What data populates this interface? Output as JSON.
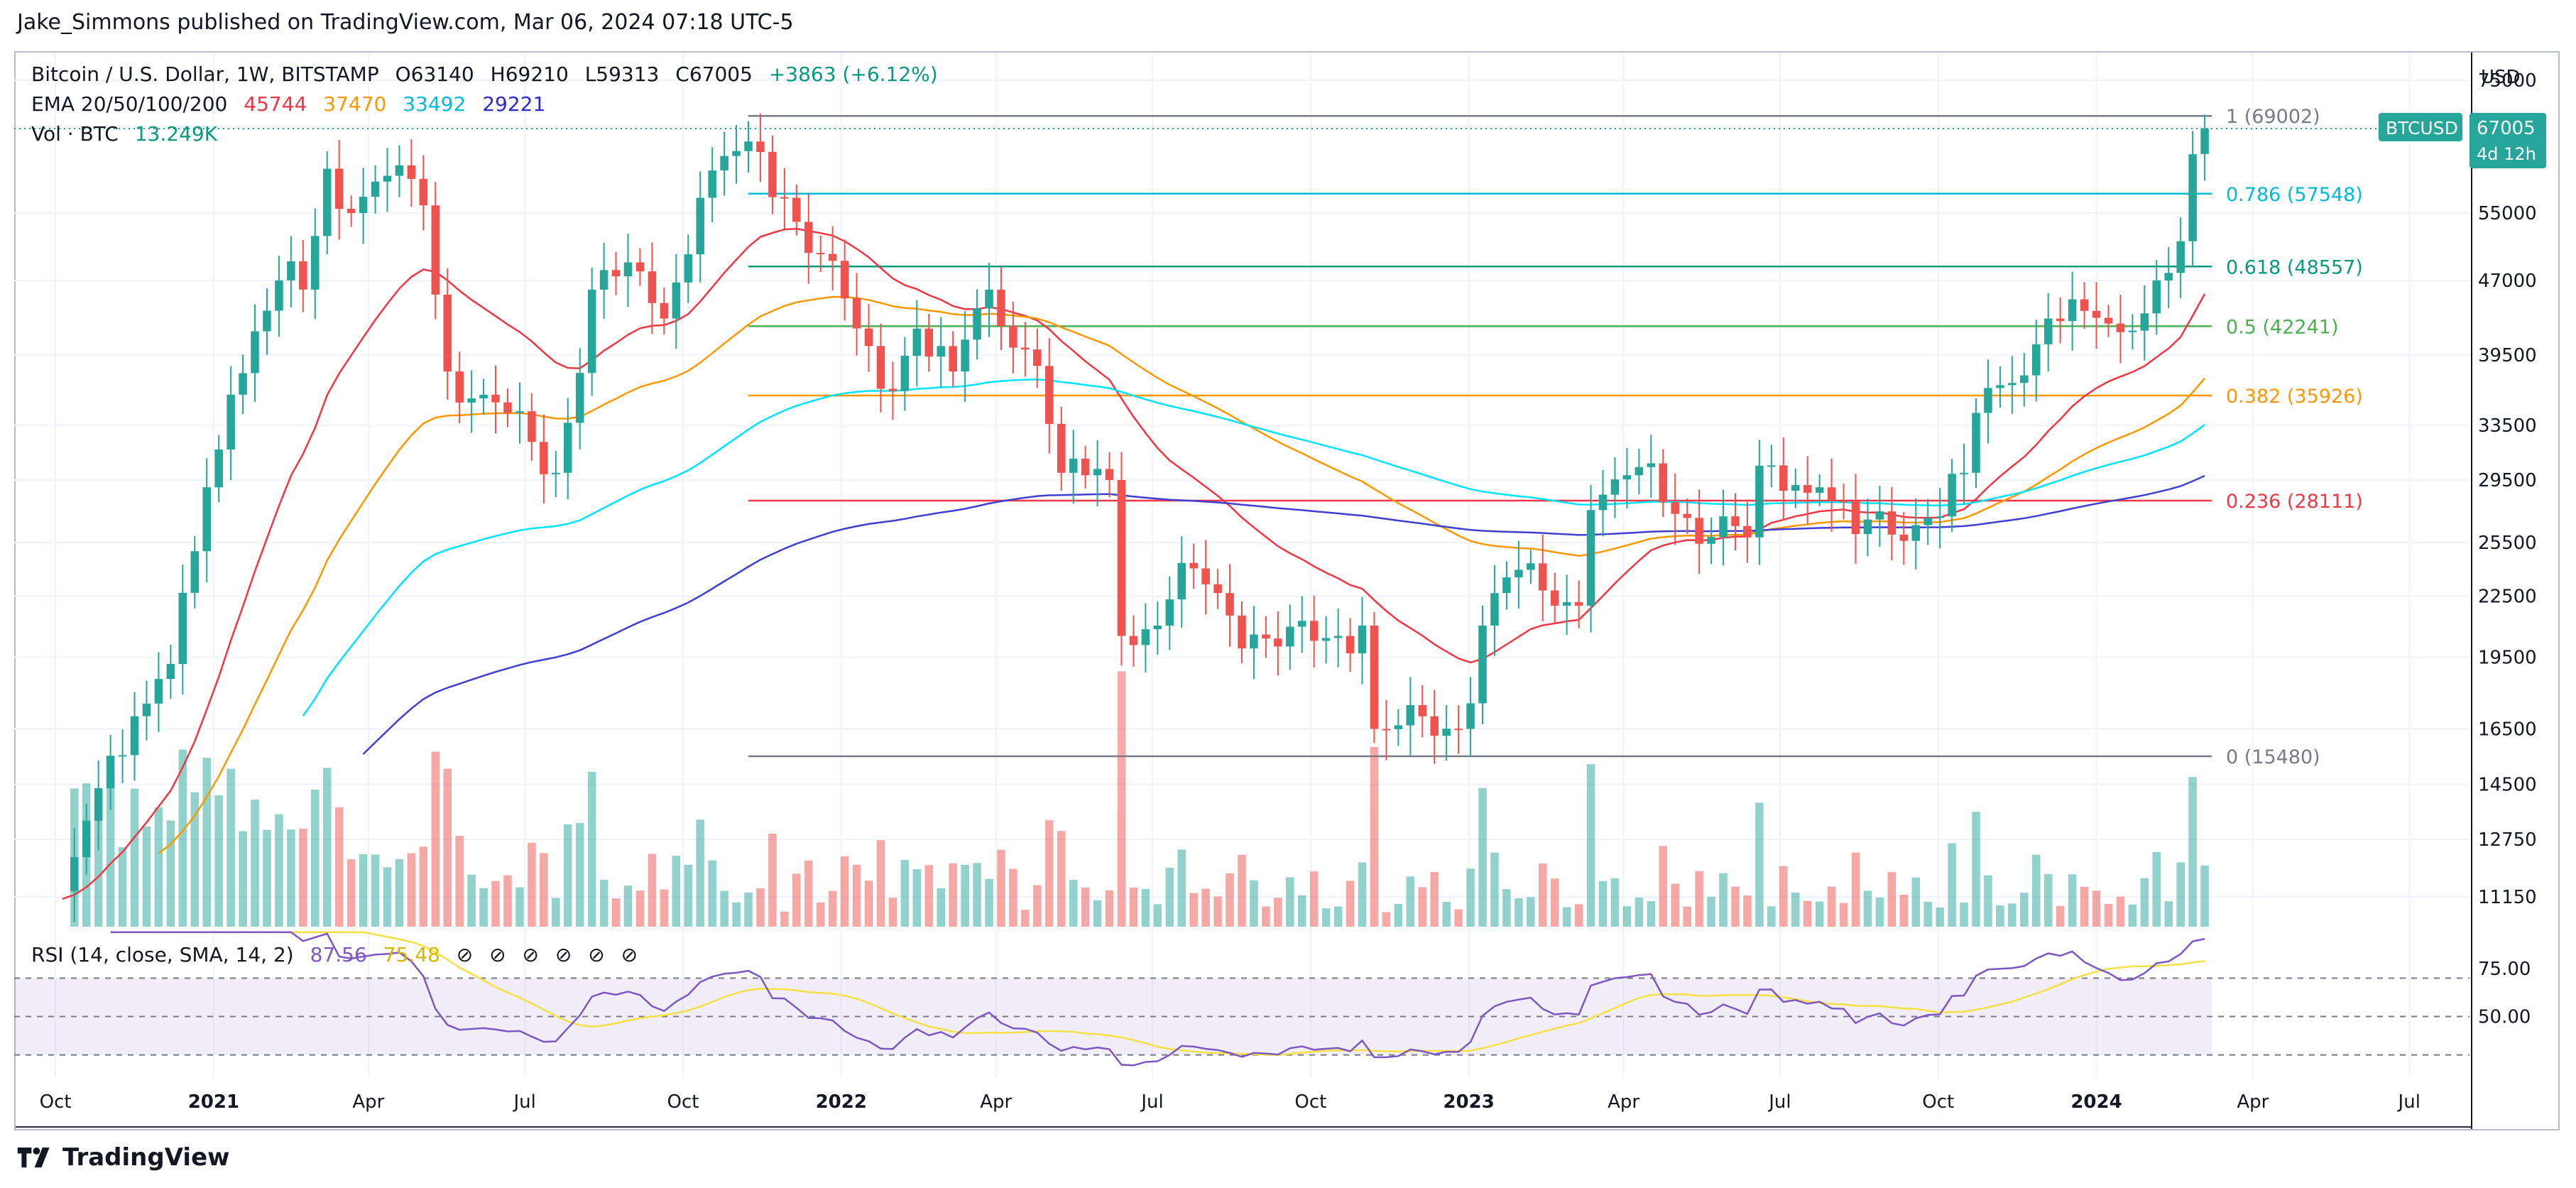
{
  "header": {
    "byline": "Jake_Simmons published on TradingView.com, Mar 06, 2024 07:18 UTC-5"
  },
  "legend": {
    "symbol": "Bitcoin / U.S. Dollar, 1W, BITSTAMP",
    "open": "O63140",
    "high": "H69210",
    "low": "L59313",
    "close": "C67005",
    "change": "+3863 (+6.12%)",
    "ema_label": "EMA 20/50/100/200",
    "ema_values": [
      "45744",
      "37470",
      "33492",
      "29221"
    ],
    "vol_label": "Vol · BTC",
    "vol_value": "13.249K",
    "rsi_label": "RSI (14, close, SMA, 14, 2)",
    "rsi_values": [
      "87.56",
      "75.48"
    ]
  },
  "currency": "USD",
  "price_tag": {
    "symbol": "BTCUSD",
    "value": "67005",
    "countdown": "4d 12h"
  },
  "footer": {
    "brand": "TradingView"
  },
  "colors": {
    "up": "#26a69a",
    "down": "#ef5350",
    "ema20": "#f23645",
    "ema50": "#ff9800",
    "ema100": "#00e5ff",
    "ema200": "#3f3fd1",
    "rsi": "#7e57c2",
    "rsi_ma": "#f5e045"
  },
  "chart_data": {
    "type": "candlestick",
    "title": "Bitcoin / U.S. Dollar, 1W, BITSTAMP",
    "y_axis": {
      "scale": "log",
      "ticks": [
        11150,
        12750,
        14500,
        16500,
        19500,
        22500,
        25500,
        29500,
        33500,
        39500,
        47000,
        55000,
        75000
      ]
    },
    "x_axis": {
      "ticks": [
        "Oct",
        "2021",
        "Apr",
        "Jul",
        "Oct",
        "2022",
        "Apr",
        "Jul",
        "Oct",
        "2023",
        "Apr",
        "Jul",
        "Oct",
        "2024",
        "Apr",
        "Jul"
      ]
    },
    "close_anchors": [
      [
        "2020-10-05",
        11300
      ],
      [
        "2020-11-02",
        15500
      ],
      [
        "2020-12-07",
        19200
      ],
      [
        "2020-12-28",
        29000
      ],
      [
        "2021-01-11",
        36000
      ],
      [
        "2021-02-08",
        47000
      ],
      [
        "2021-02-22",
        46000
      ],
      [
        "2021-03-08",
        61000
      ],
      [
        "2021-03-22",
        55000
      ],
      [
        "2021-04-12",
        60000
      ],
      [
        "2021-05-03",
        56000
      ],
      [
        "2021-05-17",
        38000
      ],
      [
        "2021-06-07",
        36000
      ],
      [
        "2021-07-19",
        30000
      ],
      [
        "2021-08-09",
        46000
      ],
      [
        "2021-09-06",
        48000
      ],
      [
        "2021-09-20",
        43000
      ],
      [
        "2021-10-11",
        57000
      ],
      [
        "2021-11-08",
        65000
      ],
      [
        "2021-11-29",
        57000
      ],
      [
        "2021-12-20",
        50000
      ],
      [
        "2022-01-24",
        36500
      ],
      [
        "2022-02-14",
        42000
      ],
      [
        "2022-03-07",
        38000
      ],
      [
        "2022-03-28",
        46000
      ],
      [
        "2022-04-25",
        38500
      ],
      [
        "2022-05-09",
        30000
      ],
      [
        "2022-06-06",
        29500
      ],
      [
        "2022-06-13",
        20500
      ],
      [
        "2022-07-04",
        21000
      ],
      [
        "2022-07-25",
        24000
      ],
      [
        "2022-08-15",
        21500
      ],
      [
        "2022-09-12",
        20000
      ],
      [
        "2022-10-17",
        20500
      ],
      [
        "2022-10-31",
        21000
      ],
      [
        "2022-11-07",
        16500
      ],
      [
        "2022-12-26",
        16500
      ],
      [
        "2023-01-09",
        21000
      ],
      [
        "2023-01-23",
        23500
      ],
      [
        "2023-03-06",
        22000
      ],
      [
        "2023-03-13",
        27500
      ],
      [
        "2023-04-10",
        30400
      ],
      [
        "2023-05-08",
        27000
      ],
      [
        "2023-06-12",
        25800
      ],
      [
        "2023-06-19",
        30500
      ],
      [
        "2023-07-24",
        29000
      ],
      [
        "2023-08-14",
        26000
      ],
      [
        "2023-09-25",
        27000
      ],
      [
        "2023-10-16",
        30000
      ],
      [
        "2023-10-23",
        34500
      ],
      [
        "2023-11-13",
        37000
      ],
      [
        "2023-12-04",
        43000
      ],
      [
        "2024-01-08",
        42500
      ],
      [
        "2024-01-22",
        41800
      ],
      [
        "2024-02-05",
        47000
      ],
      [
        "2024-02-19",
        51500
      ],
      [
        "2024-02-26",
        63100
      ],
      [
        "2024-03-04",
        67005
      ]
    ],
    "latest_candle": {
      "open": 63140,
      "high": 69210,
      "low": 59313,
      "close": 67005
    },
    "fibonacci": [
      {
        "label": "1 (69002)",
        "value": 69002,
        "color": "#787b86"
      },
      {
        "label": "0.786 (57548)",
        "value": 57548,
        "color": "#00bcd4"
      },
      {
        "label": "0.618 (48557)",
        "value": 48557,
        "color": "#089981"
      },
      {
        "label": "0.5 (42241)",
        "value": 42241,
        "color": "#4caf50"
      },
      {
        "label": "0.382 (35926)",
        "value": 35926,
        "color": "#ff9800"
      },
      {
        "label": "0.236 (28111)",
        "value": 28111,
        "color": "#f23645"
      },
      {
        "label": "0 (15480)",
        "value": 15480,
        "color": "#787b86"
      }
    ],
    "ema": [
      {
        "name": "EMA 20",
        "period": 20
      },
      {
        "name": "EMA 50",
        "period": 50
      },
      {
        "name": "EMA 100",
        "period": 100
      },
      {
        "name": "EMA 200",
        "period": 200
      }
    ],
    "rsi": {
      "levels": [
        30,
        50,
        70
      ],
      "ticks": [
        50.0,
        75.0
      ],
      "last_rsi": 87.56,
      "last_ma": 75.48
    }
  }
}
